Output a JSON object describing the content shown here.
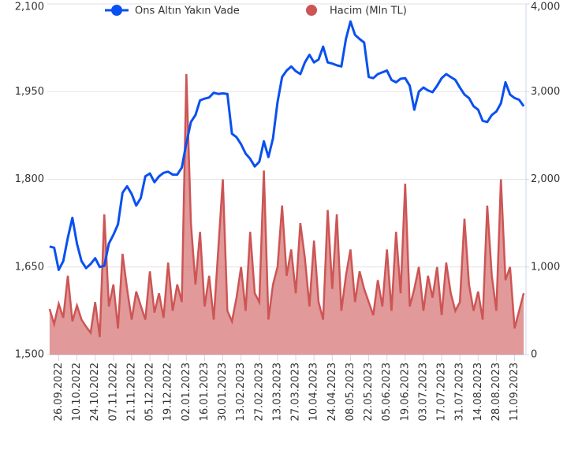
{
  "chart_data": {
    "type": "line",
    "categories": [
      null,
      null,
      "26.09.2022",
      null,
      null,
      null,
      "10.10.2022",
      null,
      null,
      null,
      "24.10.2022",
      null,
      null,
      null,
      "07.11.2022",
      null,
      null,
      null,
      "21.11.2022",
      null,
      null,
      null,
      "05.12.2022",
      null,
      null,
      null,
      "19.12.2022",
      null,
      null,
      null,
      "02.01.2023",
      null,
      null,
      null,
      "16.01.2023",
      null,
      null,
      null,
      "30.01.2023",
      null,
      null,
      null,
      "13.02.2023",
      null,
      null,
      null,
      "27.02.2023",
      null,
      null,
      null,
      "13.03.2023",
      null,
      null,
      null,
      "27.03.2023",
      null,
      null,
      null,
      "10.04.2023",
      null,
      null,
      null,
      "24.04.2023",
      null,
      null,
      null,
      "08.05.2023",
      null,
      null,
      null,
      "22.05.2023",
      null,
      null,
      null,
      "05.06.2023",
      null,
      null,
      null,
      "19.06.2023",
      null,
      null,
      null,
      "03.07.2023",
      null,
      null,
      null,
      "17.07.2023",
      null,
      null,
      null,
      "31.07.2023",
      null,
      null,
      null,
      "14.08.2023",
      null,
      null,
      null,
      "28.08.2023",
      null,
      null,
      null,
      "11.09.2023",
      null,
      null
    ],
    "series": [
      {
        "name": "Ons Altın Yakın Vade",
        "color": "#0a50f0",
        "type": "line",
        "values": [
          1685,
          1683,
          1645,
          1660,
          1700,
          1734,
          1690,
          1660,
          1648,
          1655,
          1665,
          1650,
          1652,
          1690,
          1705,
          1723,
          1777,
          1788,
          1775,
          1755,
          1768,
          1805,
          1810,
          1795,
          1805,
          1811,
          1813,
          1808,
          1808,
          1820,
          1862,
          1898,
          1910,
          1935,
          1938,
          1940,
          1948,
          1946,
          1947,
          1946,
          1878,
          1872,
          1860,
          1844,
          1835,
          1822,
          1830,
          1865,
          1838,
          1870,
          1932,
          1975,
          1986,
          1993,
          1985,
          1980,
          2000,
          2013,
          2000,
          2005,
          2027,
          2000,
          1998,
          1995,
          1993,
          2040,
          2070,
          2047,
          2040,
          2034,
          1975,
          1973,
          1980,
          1983,
          1986,
          1970,
          1966,
          1972,
          1973,
          1960,
          1919,
          1950,
          1957,
          1952,
          1949,
          1960,
          1973,
          1980,
          1975,
          1970,
          1957,
          1945,
          1939,
          1925,
          1919,
          1900,
          1898,
          1910,
          1916,
          1930,
          1966,
          1945,
          1939,
          1936,
          1925
        ]
      },
      {
        "name": "Hacim (Mln TL)",
        "color": "#cd5555",
        "type": "area",
        "axis": "y2",
        "values": [
          520,
          350,
          580,
          420,
          900,
          380,
          560,
          400,
          320,
          250,
          600,
          200,
          1600,
          550,
          800,
          300,
          1150,
          750,
          400,
          720,
          560,
          400,
          950,
          480,
          700,
          420,
          1050,
          500,
          800,
          600,
          3200,
          1500,
          800,
          1400,
          550,
          900,
          400,
          1200,
          2000,
          500,
          380,
          650,
          1000,
          500,
          1400,
          700,
          600,
          2100,
          400,
          800,
          1000,
          1700,
          900,
          1200,
          700,
          1500,
          1100,
          550,
          1300,
          600,
          400,
          1650,
          750,
          1600,
          500,
          900,
          1200,
          600,
          950,
          750,
          600,
          450,
          850,
          550,
          1200,
          500,
          1400,
          700,
          1950,
          550,
          750,
          1000,
          500,
          900,
          650,
          1000,
          450,
          1050,
          700,
          500,
          600,
          1550,
          800,
          500,
          720,
          400,
          1700,
          900,
          500,
          2000,
          850,
          1000,
          300,
          500,
          700
        ]
      }
    ],
    "ylim": [
      1500,
      2100
    ],
    "yticks": [
      {
        "value": 1500,
        "label": "1,500"
      },
      {
        "value": 1650,
        "label": "1,650"
      },
      {
        "value": 1800,
        "label": "1,800"
      },
      {
        "value": 1950,
        "label": "1,950"
      },
      {
        "value": 2100,
        "label": "2,100"
      }
    ],
    "y2lim": [
      0,
      4000
    ],
    "y2ticks": [
      0,
      {
        "value": 1000,
        "label": "1,000"
      },
      {
        "value": 2000,
        "label": "2,000"
      },
      {
        "value": 3000,
        "label": "3,000"
      },
      {
        "value": 4000,
        "label": "4,000"
      }
    ],
    "grid": true,
    "legend": "top"
  }
}
